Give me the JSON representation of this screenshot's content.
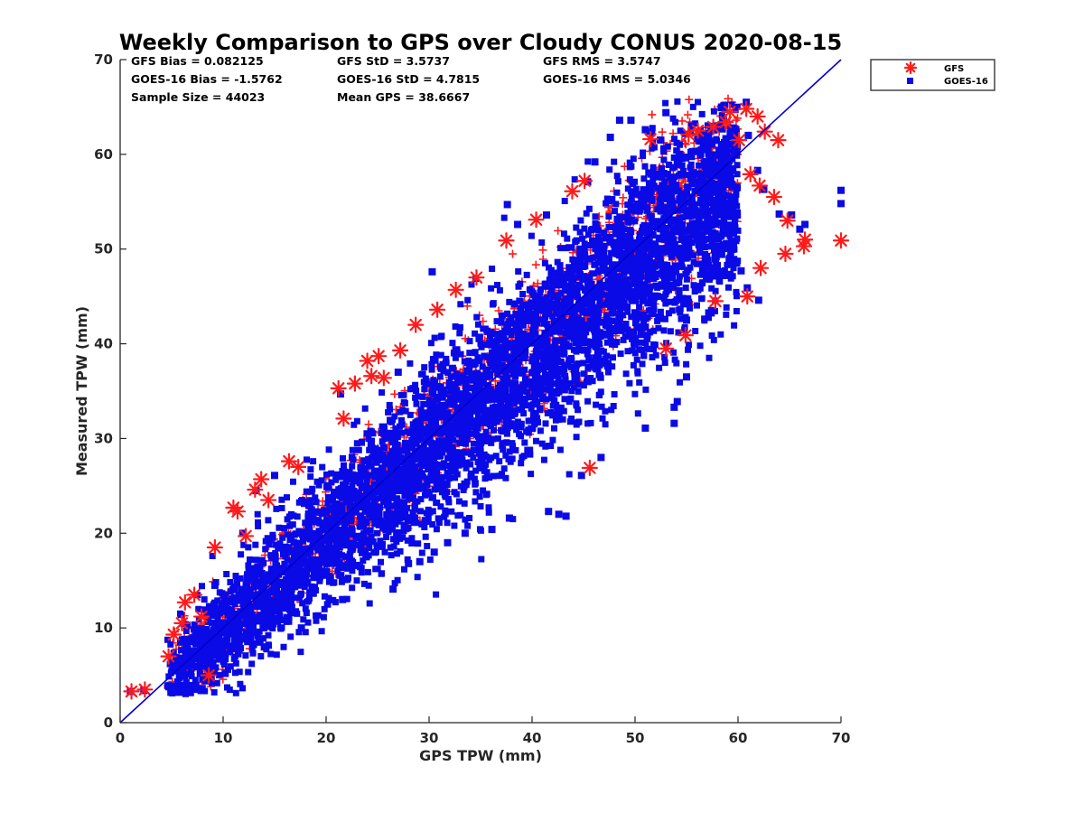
{
  "chart_data": {
    "type": "scatter",
    "title": "Weekly Comparison to GPS over Cloudy CONUS 2020-08-15",
    "xlabel": "GPS TPW (mm)",
    "ylabel": "Measured TPW (mm)",
    "xlim": [
      0,
      70
    ],
    "ylim": [
      0,
      70
    ],
    "xticks": [
      "0",
      "10",
      "20",
      "30",
      "40",
      "50",
      "60",
      "70"
    ],
    "yticks": [
      "0",
      "10",
      "20",
      "30",
      "40",
      "50",
      "60",
      "70"
    ],
    "grid": false,
    "legend": "outside top-right",
    "one_to_one_line": {
      "from": [
        0,
        0
      ],
      "to": [
        70,
        70
      ],
      "color": "#0000cc"
    },
    "stats": [
      [
        "GFS Bias = 0.082125",
        "GFS StD = 3.5737",
        "GFS RMS = 3.5747"
      ],
      [
        "GOES-16 Bias = -1.5762",
        "GOES-16 StD = 4.7815",
        "GOES-16 RMS = 5.0346"
      ],
      [
        "Sample Size = 44023",
        "Mean GPS = 38.6667"
      ]
    ],
    "series": [
      {
        "name": "GFS",
        "marker": "asterisk",
        "color": "#ff1a1a",
        "points": [
          [
            1.1,
            3.3
          ],
          [
            2.4,
            3.5
          ],
          [
            4.7,
            7.0
          ],
          [
            5.2,
            9.3
          ],
          [
            6.0,
            10.5
          ],
          [
            6.3,
            12.7
          ],
          [
            7.9,
            11.2
          ],
          [
            8.6,
            5.0
          ],
          [
            9.2,
            18.5
          ],
          [
            11.0,
            22.7
          ],
          [
            11.4,
            22.3
          ],
          [
            13.1,
            24.6
          ],
          [
            13.7,
            25.7
          ],
          [
            14.4,
            23.5
          ],
          [
            16.4,
            27.6
          ],
          [
            17.3,
            27.0
          ],
          [
            21.2,
            35.3
          ],
          [
            21.7,
            32.1
          ],
          [
            22.8,
            35.8
          ],
          [
            24.0,
            38.2
          ],
          [
            25.1,
            38.7
          ],
          [
            25.6,
            36.4
          ],
          [
            27.2,
            39.3
          ],
          [
            28.7,
            42.0
          ],
          [
            30.8,
            43.6
          ],
          [
            32.6,
            45.7
          ],
          [
            34.6,
            47.0
          ],
          [
            37.5,
            50.9
          ],
          [
            40.4,
            53.1
          ],
          [
            43.9,
            56.1
          ],
          [
            45.1,
            57.2
          ],
          [
            51.5,
            61.6
          ],
          [
            55.2,
            62.1
          ],
          [
            56.1,
            62.5
          ],
          [
            57.6,
            62.9
          ],
          [
            58.8,
            63.4
          ],
          [
            59.2,
            64.5
          ],
          [
            60.1,
            61.5
          ],
          [
            60.8,
            64.8
          ],
          [
            61.9,
            64.0
          ],
          [
            62.6,
            62.4
          ],
          [
            63.9,
            61.5
          ],
          [
            61.2,
            57.9
          ],
          [
            62.1,
            56.7
          ],
          [
            63.5,
            55.5
          ],
          [
            64.8,
            53.0
          ],
          [
            66.5,
            51.0
          ],
          [
            66.4,
            50.3
          ],
          [
            70.0,
            50.9
          ],
          [
            64.6,
            49.5
          ],
          [
            62.2,
            48.0
          ],
          [
            60.9,
            45.0
          ],
          [
            57.8,
            44.5
          ],
          [
            54.9,
            40.9
          ],
          [
            53.0,
            39.5
          ],
          [
            45.6,
            26.9
          ],
          [
            24.4,
            36.6
          ],
          [
            12.2,
            19.7
          ],
          [
            7.2,
            13.5
          ]
        ],
        "cloud": {
          "slope": 1.0,
          "offset": 0.0,
          "spread": 3.5,
          "xrange": [
            4.5,
            60
          ],
          "count": 1500
        }
      },
      {
        "name": "GOES-16",
        "marker": "square",
        "color": "#0a0ae6",
        "points": [
          [
            1.0,
            3.3
          ],
          [
            2.3,
            3.4
          ],
          [
            7.9,
            3.4
          ],
          [
            8.2,
            4.9
          ],
          [
            10.2,
            5.2
          ],
          [
            14.0,
            8.0
          ],
          [
            17.6,
            10.0
          ],
          [
            21.6,
            13.0
          ],
          [
            23.0,
            16.6
          ],
          [
            26.5,
            14.1
          ],
          [
            28.0,
            16.8
          ],
          [
            29.1,
            17.0
          ],
          [
            30.5,
            18.0
          ],
          [
            31.8,
            19.0
          ],
          [
            33.5,
            20.0
          ],
          [
            36.1,
            20.4
          ],
          [
            37.8,
            21.6
          ],
          [
            41.6,
            22.3
          ],
          [
            43.3,
            21.8
          ],
          [
            42.6,
            22.0
          ],
          [
            44.8,
            26.1
          ],
          [
            46.7,
            28.0
          ],
          [
            51.0,
            31.1
          ],
          [
            53.8,
            33.3
          ],
          [
            53.8,
            31.6
          ],
          [
            54.1,
            33.9
          ],
          [
            55.0,
            36.5
          ],
          [
            30.3,
            47.6
          ],
          [
            37.6,
            54.7
          ],
          [
            38.6,
            52.6
          ],
          [
            41.4,
            53.6
          ],
          [
            45.4,
            57.1
          ],
          [
            46.1,
            59.2
          ],
          [
            47.6,
            61.8
          ],
          [
            48.5,
            63.6
          ],
          [
            49.6,
            63.6
          ],
          [
            51.0,
            62.6
          ],
          [
            52.5,
            61.5
          ],
          [
            53.0,
            64.4
          ],
          [
            56.5,
            60.5
          ],
          [
            60.8,
            65.5
          ],
          [
            61.0,
            62.0
          ],
          [
            61.9,
            58.3
          ],
          [
            62.5,
            56.3
          ],
          [
            64.0,
            53.7
          ],
          [
            65.2,
            53.6
          ],
          [
            66.0,
            52.1
          ],
          [
            66.5,
            52.6
          ],
          [
            70.0,
            56.2
          ],
          [
            70.0,
            54.8
          ],
          [
            62.0,
            44.6
          ],
          [
            60.9,
            45.9
          ],
          [
            60.3,
            47.7
          ],
          [
            55.0,
            42.5
          ],
          [
            21.4,
            34.7
          ],
          [
            27.0,
            37.0
          ],
          [
            15.0,
            26.1
          ],
          [
            13.2,
            24.5
          ],
          [
            9.2,
            14.5
          ]
        ],
        "cloud": {
          "slope": 0.96,
          "offset": 0.0,
          "spread": 4.8,
          "xrange": [
            4.5,
            60
          ],
          "count": 5000
        }
      }
    ]
  }
}
